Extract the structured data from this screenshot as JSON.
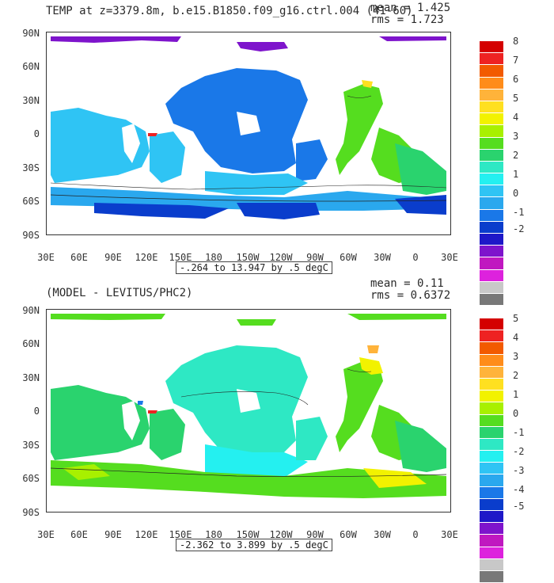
{
  "panels": [
    {
      "title": "TEMP at z=3379.8m, b.e15.B1850.f09_g16.ctrl.004 (41-60)",
      "mean": "mean = 1.425",
      "rms": "rms = 1.723",
      "range": "-.264 to 13.947 by .5 degC",
      "lat_labels": [
        "90N",
        "60N",
        "30N",
        "0",
        "30S",
        "60S",
        "90S"
      ],
      "lon_labels": [
        "30E",
        "60E",
        "90E",
        "120E",
        "150E",
        "180",
        "150W",
        "120W",
        "90W",
        "60W",
        "30W",
        "0",
        "30E"
      ],
      "colorbar": {
        "labels": [
          "8",
          "7",
          "6",
          "5",
          "4",
          "3",
          "2",
          "1",
          "0",
          "-1",
          "-2"
        ],
        "colors": [
          "#d40000",
          "#ee2222",
          "#f25a00",
          "#ff8c1a",
          "#ffb33a",
          "#ffe020",
          "#f2f200",
          "#a8f000",
          "#55dd1f",
          "#2ad36e",
          "#2ee8c4",
          "#24f0f0",
          "#2fc4f4",
          "#2aa8ee",
          "#1a78e8",
          "#0a3dcc",
          "#1e18c8",
          "#7e14cc",
          "#c018c0",
          "#dd22dd",
          "#c8c8c8",
          "#787878"
        ]
      }
    },
    {
      "title": "(MODEL - LEVITUS/PHC2)",
      "mean": "mean = 0.11",
      "rms": "rms = 0.6372",
      "range": "-2.362 to 3.899 by .5 degC",
      "lat_labels": [
        "90N",
        "60N",
        "30N",
        "0",
        "30S",
        "60S",
        "90S"
      ],
      "lon_labels": [
        "30E",
        "60E",
        "90E",
        "120E",
        "150E",
        "180",
        "150W",
        "120W",
        "90W",
        "60W",
        "30W",
        "0",
        "30E"
      ],
      "colorbar": {
        "labels": [
          "5",
          "4",
          "3",
          "2",
          "1",
          "0",
          "-1",
          "-2",
          "-3",
          "-4",
          "-5"
        ],
        "colors": [
          "#d40000",
          "#ee2222",
          "#f25a00",
          "#ff8c1a",
          "#ffb33a",
          "#ffe020",
          "#f2f200",
          "#a8f000",
          "#55dd1f",
          "#2ad36e",
          "#2ee8c4",
          "#24f0f0",
          "#2fc4f4",
          "#2aa8ee",
          "#1a78e8",
          "#0a3dcc",
          "#1e18c8",
          "#7e14cc",
          "#c018c0",
          "#dd22dd",
          "#c8c8c8",
          "#787878"
        ]
      }
    }
  ]
}
